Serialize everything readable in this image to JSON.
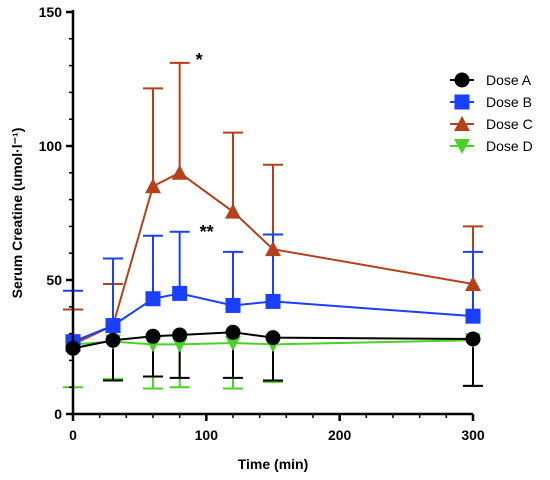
{
  "chart_data": {
    "type": "line",
    "title": "",
    "xlabel": "Time (min)",
    "ylabel": "Serum Creatine (umol·l⁻¹)",
    "xlim": [
      0,
      300
    ],
    "ylim": [
      0,
      150
    ],
    "x_ticks": [
      0,
      100,
      200,
      300
    ],
    "y_ticks": [
      0,
      50,
      100,
      150
    ],
    "grid": false,
    "legend_position": "top-right",
    "x": [
      0,
      30,
      60,
      80,
      120,
      150,
      300
    ],
    "series": [
      {
        "name": "Dose A",
        "color": "#000000",
        "marker": "circle",
        "values": [
          24.5,
          27.5,
          29,
          29.5,
          30.5,
          28.5,
          28
        ],
        "error": [
          null,
          15,
          15,
          16,
          17,
          16,
          17.5
        ],
        "error_direction": "down"
      },
      {
        "name": "Dose B",
        "color": "#1a3fff",
        "marker": "square",
        "values": [
          27,
          33,
          43,
          45,
          40.5,
          42,
          36.5
        ],
        "error": [
          19,
          25,
          23.5,
          23,
          20,
          25,
          24
        ],
        "error_direction": "up"
      },
      {
        "name": "Dose C",
        "color": "#b5401a",
        "marker": "triangle-up",
        "values": [
          26,
          33,
          85,
          90,
          75.5,
          61.5,
          48.5
        ],
        "error": [
          13,
          15.5,
          36.5,
          41,
          29.5,
          31.5,
          21.5
        ],
        "error_direction": "up"
      },
      {
        "name": "Dose D",
        "color": "#4cd12a",
        "marker": "triangle-down",
        "values": [
          26,
          27,
          26,
          26,
          26.5,
          26,
          27.5
        ],
        "error": [
          16,
          14,
          16.5,
          16,
          17,
          14,
          17
        ],
        "error_direction": "down"
      }
    ],
    "annotations": [
      {
        "text": "*",
        "x": 92,
        "y": 132
      },
      {
        "text": "**",
        "x": 95,
        "y": 68
      }
    ]
  }
}
